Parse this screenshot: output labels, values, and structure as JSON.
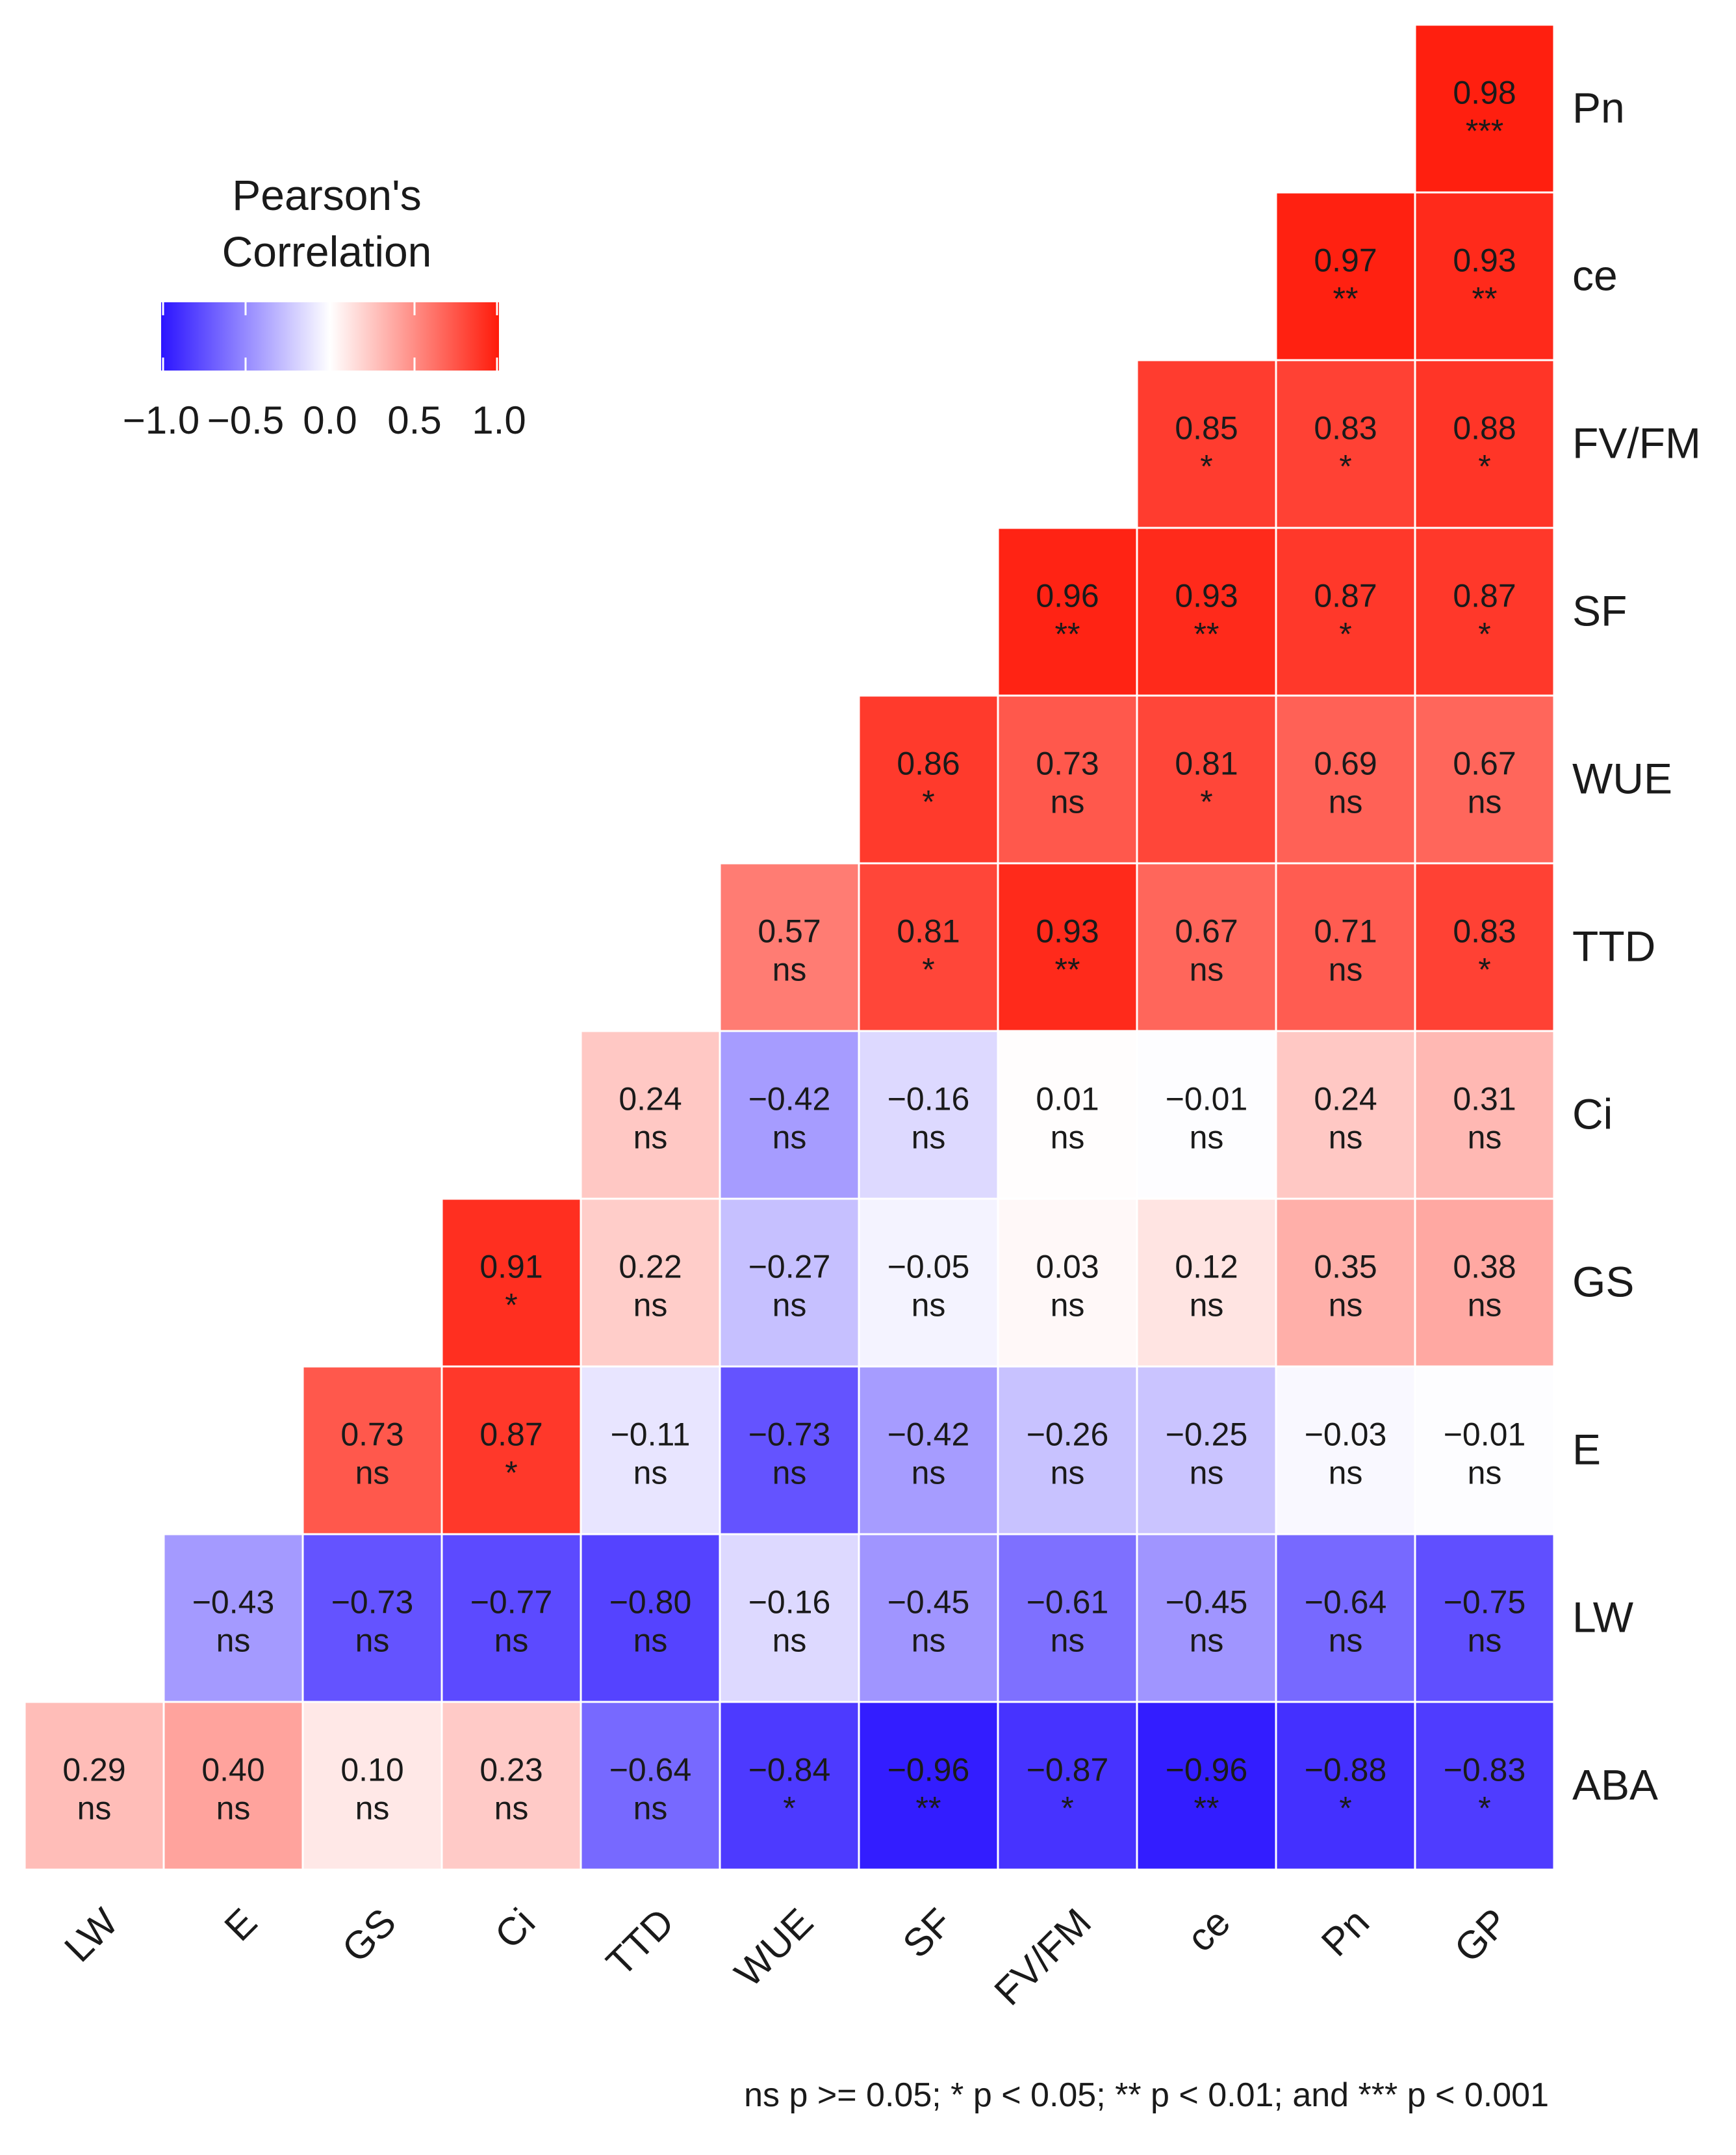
{
  "chart_data": {
    "type": "heatmap",
    "legend": {
      "title_lines": [
        "Pearson's",
        "Correlation"
      ],
      "ticks": [
        "−1.0",
        "−0.5",
        "0.0",
        "0.5",
        "1.0"
      ],
      "tick_values": [
        -1.0,
        -0.5,
        0.0,
        0.5,
        1.0
      ],
      "range": [
        -1.0,
        1.0
      ],
      "low_color": "#2b14ff",
      "mid_color": "#ffffff",
      "high_color": "#ff1a0a",
      "placement": "top-left"
    },
    "x_labels": [
      "LW",
      "E",
      "GS",
      "Ci",
      "TTD",
      "WUE",
      "SF",
      "FV/FM",
      "ce",
      "Pn",
      "GP"
    ],
    "y_labels": [
      "Pn",
      "ce",
      "FV/FM",
      "SF",
      "WUE",
      "TTD",
      "Ci",
      "GS",
      "E",
      "LW",
      "ABA"
    ],
    "cells": [
      {
        "row": "Pn",
        "col": "GP",
        "value": 0.98,
        "label": "0.98",
        "sig": "***"
      },
      {
        "row": "ce",
        "col": "Pn",
        "value": 0.97,
        "label": "0.97",
        "sig": "**"
      },
      {
        "row": "ce",
        "col": "GP",
        "value": 0.93,
        "label": "0.93",
        "sig": "**"
      },
      {
        "row": "FV/FM",
        "col": "ce",
        "value": 0.85,
        "label": "0.85",
        "sig": "*"
      },
      {
        "row": "FV/FM",
        "col": "Pn",
        "value": 0.83,
        "label": "0.83",
        "sig": "*"
      },
      {
        "row": "FV/FM",
        "col": "GP",
        "value": 0.88,
        "label": "0.88",
        "sig": "*"
      },
      {
        "row": "SF",
        "col": "FV/FM",
        "value": 0.96,
        "label": "0.96",
        "sig": "**"
      },
      {
        "row": "SF",
        "col": "ce",
        "value": 0.93,
        "label": "0.93",
        "sig": "**"
      },
      {
        "row": "SF",
        "col": "Pn",
        "value": 0.87,
        "label": "0.87",
        "sig": "*"
      },
      {
        "row": "SF",
        "col": "GP",
        "value": 0.87,
        "label": "0.87",
        "sig": "*"
      },
      {
        "row": "WUE",
        "col": "SF",
        "value": 0.86,
        "label": "0.86",
        "sig": "*"
      },
      {
        "row": "WUE",
        "col": "FV/FM",
        "value": 0.73,
        "label": "0.73",
        "sig": "ns"
      },
      {
        "row": "WUE",
        "col": "ce",
        "value": 0.81,
        "label": "0.81",
        "sig": "*"
      },
      {
        "row": "WUE",
        "col": "Pn",
        "value": 0.69,
        "label": "0.69",
        "sig": "ns"
      },
      {
        "row": "WUE",
        "col": "GP",
        "value": 0.67,
        "label": "0.67",
        "sig": "ns"
      },
      {
        "row": "TTD",
        "col": "WUE",
        "value": 0.57,
        "label": "0.57",
        "sig": "ns"
      },
      {
        "row": "TTD",
        "col": "SF",
        "value": 0.81,
        "label": "0.81",
        "sig": "*"
      },
      {
        "row": "TTD",
        "col": "FV/FM",
        "value": 0.93,
        "label": "0.93",
        "sig": "**"
      },
      {
        "row": "TTD",
        "col": "ce",
        "value": 0.67,
        "label": "0.67",
        "sig": "ns"
      },
      {
        "row": "TTD",
        "col": "Pn",
        "value": 0.71,
        "label": "0.71",
        "sig": "ns"
      },
      {
        "row": "TTD",
        "col": "GP",
        "value": 0.83,
        "label": "0.83",
        "sig": "*"
      },
      {
        "row": "Ci",
        "col": "TTD",
        "value": 0.24,
        "label": "0.24",
        "sig": "ns"
      },
      {
        "row": "Ci",
        "col": "WUE",
        "value": -0.42,
        "label": "−0.42",
        "sig": "ns"
      },
      {
        "row": "Ci",
        "col": "SF",
        "value": -0.16,
        "label": "−0.16",
        "sig": "ns"
      },
      {
        "row": "Ci",
        "col": "FV/FM",
        "value": 0.01,
        "label": "0.01",
        "sig": "ns"
      },
      {
        "row": "Ci",
        "col": "ce",
        "value": -0.01,
        "label": "−0.01",
        "sig": "ns"
      },
      {
        "row": "Ci",
        "col": "Pn",
        "value": 0.24,
        "label": "0.24",
        "sig": "ns"
      },
      {
        "row": "Ci",
        "col": "GP",
        "value": 0.31,
        "label": "0.31",
        "sig": "ns"
      },
      {
        "row": "GS",
        "col": "Ci",
        "value": 0.91,
        "label": "0.91",
        "sig": "*"
      },
      {
        "row": "GS",
        "col": "TTD",
        "value": 0.22,
        "label": "0.22",
        "sig": "ns"
      },
      {
        "row": "GS",
        "col": "WUE",
        "value": -0.27,
        "label": "−0.27",
        "sig": "ns"
      },
      {
        "row": "GS",
        "col": "SF",
        "value": -0.05,
        "label": "−0.05",
        "sig": "ns"
      },
      {
        "row": "GS",
        "col": "FV/FM",
        "value": 0.03,
        "label": "0.03",
        "sig": "ns"
      },
      {
        "row": "GS",
        "col": "ce",
        "value": 0.12,
        "label": "0.12",
        "sig": "ns"
      },
      {
        "row": "GS",
        "col": "Pn",
        "value": 0.35,
        "label": "0.35",
        "sig": "ns"
      },
      {
        "row": "GS",
        "col": "GP",
        "value": 0.38,
        "label": "0.38",
        "sig": "ns"
      },
      {
        "row": "E",
        "col": "GS",
        "value": 0.73,
        "label": "0.73",
        "sig": "ns"
      },
      {
        "row": "E",
        "col": "Ci",
        "value": 0.87,
        "label": "0.87",
        "sig": "*"
      },
      {
        "row": "E",
        "col": "TTD",
        "value": -0.11,
        "label": "−0.11",
        "sig": "ns"
      },
      {
        "row": "E",
        "col": "WUE",
        "value": -0.73,
        "label": "−0.73",
        "sig": "ns"
      },
      {
        "row": "E",
        "col": "SF",
        "value": -0.42,
        "label": "−0.42",
        "sig": "ns"
      },
      {
        "row": "E",
        "col": "FV/FM",
        "value": -0.26,
        "label": "−0.26",
        "sig": "ns"
      },
      {
        "row": "E",
        "col": "ce",
        "value": -0.25,
        "label": "−0.25",
        "sig": "ns"
      },
      {
        "row": "E",
        "col": "Pn",
        "value": -0.03,
        "label": "−0.03",
        "sig": "ns"
      },
      {
        "row": "E",
        "col": "GP",
        "value": -0.01,
        "label": "−0.01",
        "sig": "ns"
      },
      {
        "row": "LW",
        "col": "E",
        "value": -0.43,
        "label": "−0.43",
        "sig": "ns"
      },
      {
        "row": "LW",
        "col": "GS",
        "value": -0.73,
        "label": "−0.73",
        "sig": "ns"
      },
      {
        "row": "LW",
        "col": "Ci",
        "value": -0.77,
        "label": "−0.77",
        "sig": "ns"
      },
      {
        "row": "LW",
        "col": "TTD",
        "value": -0.8,
        "label": "−0.80",
        "sig": "ns"
      },
      {
        "row": "LW",
        "col": "WUE",
        "value": -0.16,
        "label": "−0.16",
        "sig": "ns"
      },
      {
        "row": "LW",
        "col": "SF",
        "value": -0.45,
        "label": "−0.45",
        "sig": "ns"
      },
      {
        "row": "LW",
        "col": "FV/FM",
        "value": -0.61,
        "label": "−0.61",
        "sig": "ns"
      },
      {
        "row": "LW",
        "col": "ce",
        "value": -0.45,
        "label": "−0.45",
        "sig": "ns"
      },
      {
        "row": "LW",
        "col": "Pn",
        "value": -0.64,
        "label": "−0.64",
        "sig": "ns"
      },
      {
        "row": "LW",
        "col": "GP",
        "value": -0.75,
        "label": "−0.75",
        "sig": "ns"
      },
      {
        "row": "ABA",
        "col": "LW",
        "value": 0.29,
        "label": "0.29",
        "sig": "ns"
      },
      {
        "row": "ABA",
        "col": "E",
        "value": 0.4,
        "label": "0.40",
        "sig": "ns"
      },
      {
        "row": "ABA",
        "col": "GS",
        "value": 0.1,
        "label": "0.10",
        "sig": "ns"
      },
      {
        "row": "ABA",
        "col": "Ci",
        "value": 0.23,
        "label": "0.23",
        "sig": "ns"
      },
      {
        "row": "ABA",
        "col": "TTD",
        "value": -0.64,
        "label": "−0.64",
        "sig": "ns"
      },
      {
        "row": "ABA",
        "col": "WUE",
        "value": -0.84,
        "label": "−0.84",
        "sig": "*"
      },
      {
        "row": "ABA",
        "col": "SF",
        "value": -0.96,
        "label": "−0.96",
        "sig": "**"
      },
      {
        "row": "ABA",
        "col": "FV/FM",
        "value": -0.87,
        "label": "−0.87",
        "sig": "*"
      },
      {
        "row": "ABA",
        "col": "ce",
        "value": -0.96,
        "label": "−0.96",
        "sig": "**"
      },
      {
        "row": "ABA",
        "col": "Pn",
        "value": -0.88,
        "label": "−0.88",
        "sig": "*"
      },
      {
        "row": "ABA",
        "col": "GP",
        "value": -0.83,
        "label": "−0.83",
        "sig": "*"
      }
    ],
    "footnote": "ns p >= 0.05; * p < 0.05; ** p < 0.01; and *** p < 0.001"
  }
}
